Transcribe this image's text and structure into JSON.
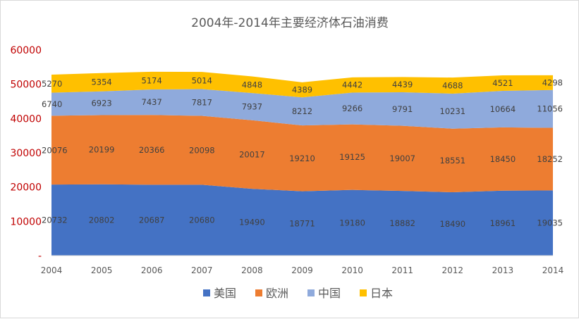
{
  "chart_data": {
    "type": "area",
    "stacked": true,
    "title": "2004年-2014年主要经济体石油消费",
    "xlabel": "",
    "ylabel": "",
    "categories": [
      "2004",
      "2005",
      "2006",
      "2007",
      "2008",
      "2009",
      "2010",
      "2011",
      "2012",
      "2013",
      "2014"
    ],
    "y_ticks": [
      "-",
      "10000",
      "20000",
      "30000",
      "40000",
      "50000",
      "60000"
    ],
    "ylim": [
      0,
      60000
    ],
    "grid": false,
    "legend_position": "bottom",
    "series": [
      {
        "name": "美国",
        "color": "#4472c4",
        "values": [
          20732,
          20802,
          20687,
          20680,
          19490,
          18771,
          19180,
          18882,
          18490,
          18961,
          19035
        ]
      },
      {
        "name": "欧洲",
        "color": "#ed7d31",
        "values": [
          20076,
          20199,
          20366,
          20098,
          20017,
          19210,
          19125,
          19007,
          18551,
          18450,
          18252
        ]
      },
      {
        "name": "中国",
        "color": "#8faadc",
        "values": [
          6740,
          6923,
          7437,
          7817,
          7937,
          8212,
          9266,
          9791,
          10231,
          10664,
          11056
        ]
      },
      {
        "name": "日本",
        "color": "#ffc000",
        "values": [
          5270,
          5354,
          5174,
          5014,
          4848,
          4389,
          4442,
          4439,
          4688,
          4521,
          4298
        ]
      }
    ]
  }
}
